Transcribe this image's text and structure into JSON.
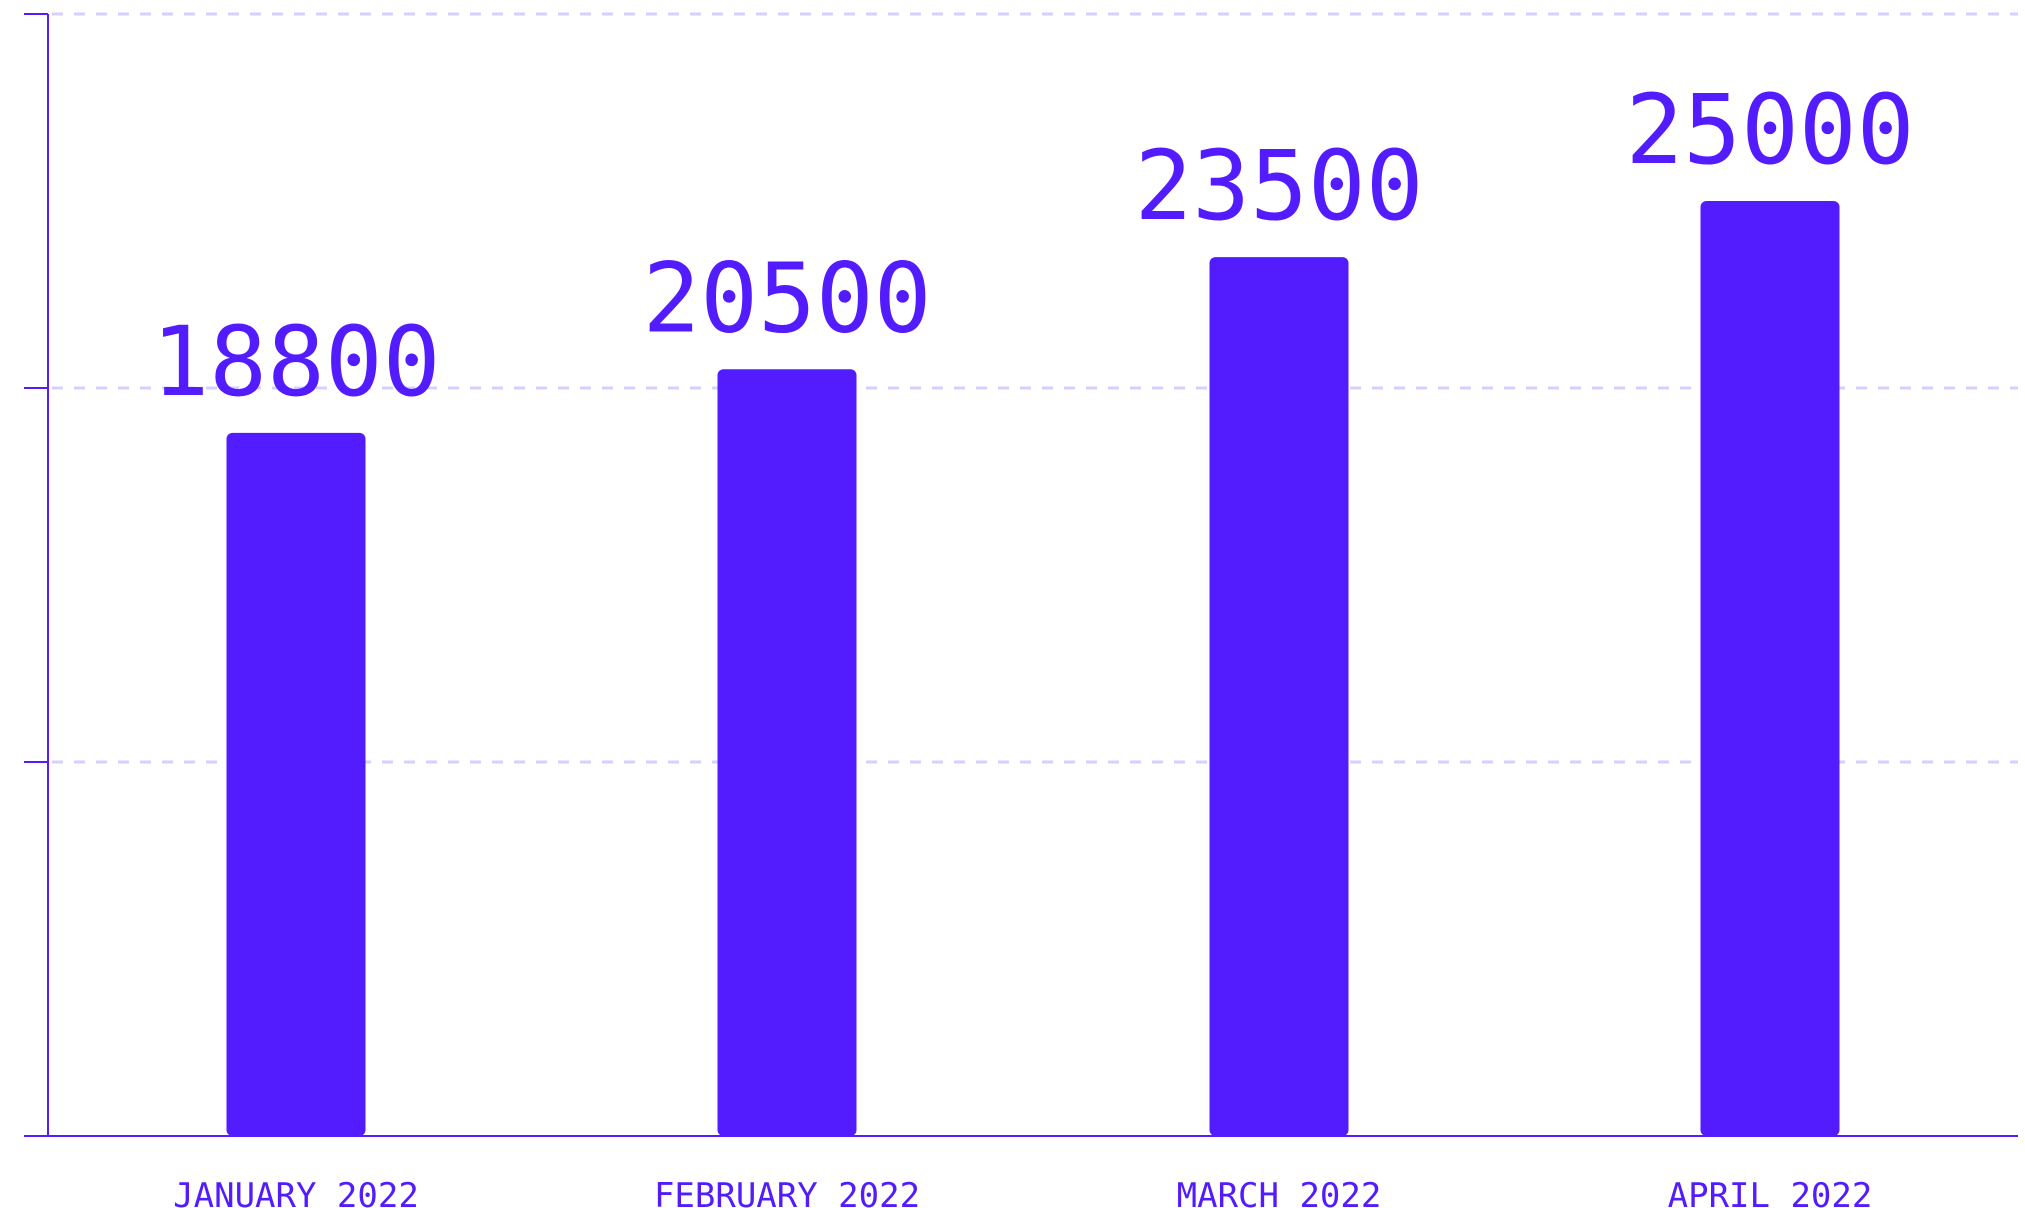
{
  "chart_data": {
    "type": "bar",
    "categories": [
      "JANUARY 2022",
      "FEBRUARY 2022",
      "MARCH 2022",
      "APRIL 2022"
    ],
    "values": [
      18800,
      20500,
      23500,
      25000
    ],
    "ylim": [
      0,
      30000
    ],
    "grid": true,
    "value_labels": [
      "18800",
      "20500",
      "23500",
      "25000"
    ]
  },
  "colors": {
    "bar": "#531CFF",
    "axis": "#531CFF",
    "grid": "#D4D0FF",
    "label": "#531CFF"
  }
}
